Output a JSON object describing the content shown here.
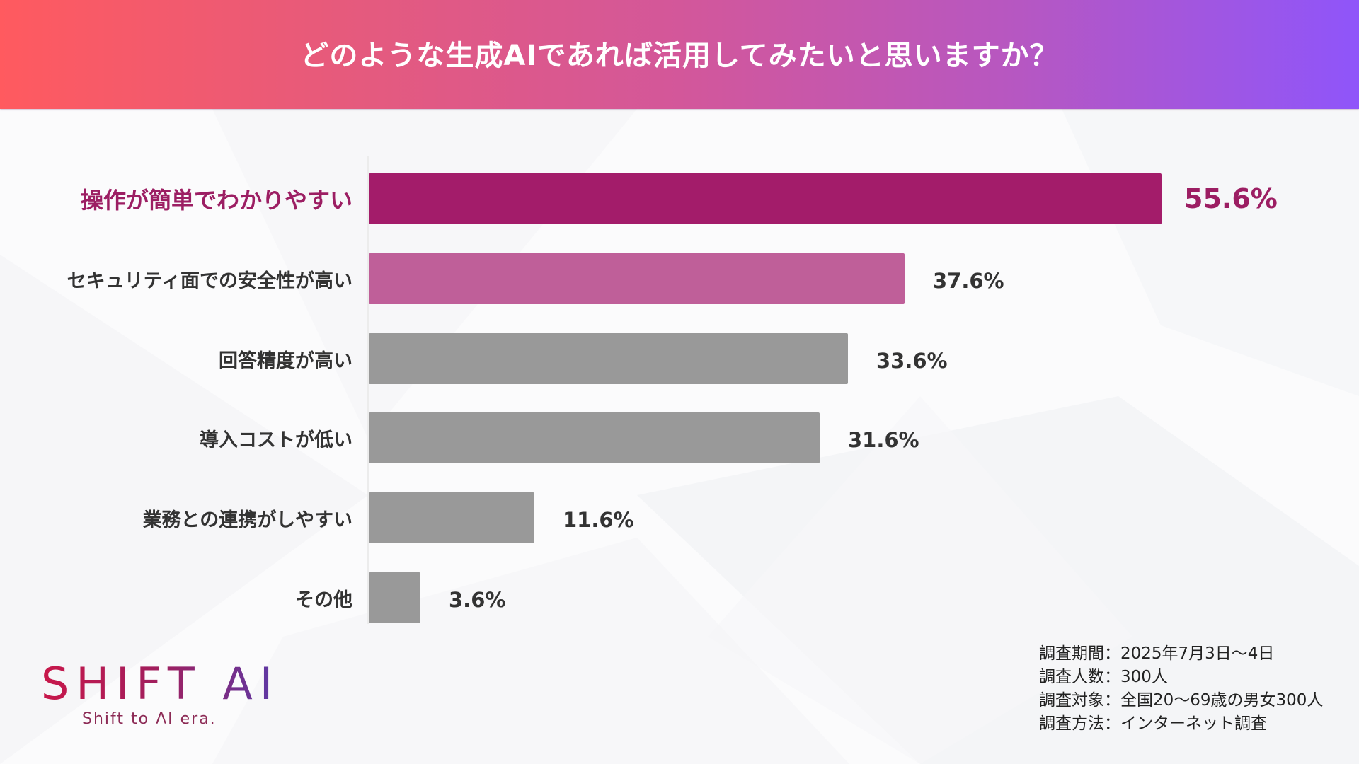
{
  "header": {
    "title": "どのような生成AIであれば活用してみたいと思いますか？"
  },
  "colors": {
    "highlight": "#a31c6a",
    "secondary": "#bf5f99",
    "neutral": "#999999",
    "highlight_text": "#9c1e63",
    "header_gradient": [
      "#ff5a5f",
      "#d3579a",
      "#8f55fa"
    ]
  },
  "chart_data": {
    "type": "bar",
    "orientation": "horizontal",
    "title": "どのような生成AIであれば活用してみたいと思いますか？",
    "xlabel": "",
    "ylabel": "",
    "xlim": [
      0,
      55.6
    ],
    "grid": false,
    "unit": "%",
    "categories": [
      "操作が簡単でわかりやすい",
      "セキュリティ面での安全性が高い",
      "回答精度が高い",
      "導入コストが低い",
      "業務との連携がしやすい",
      "その他"
    ],
    "values": [
      55.6,
      37.6,
      33.6,
      31.6,
      11.6,
      3.6
    ],
    "value_labels": [
      "55.6%",
      "37.6%",
      "33.6%",
      "31.6%",
      "11.6%",
      "3.6%"
    ],
    "bar_colors": [
      "#a31c6a",
      "#bf5f99",
      "#999999",
      "#999999",
      "#999999",
      "#999999"
    ],
    "highlighted_index": 0
  },
  "notes": [
    "調査期間：2025年7月3日〜4日",
    "調査人数：300人",
    "調査対象：全国20〜69歳の男女300人",
    "調査方法：インターネット調査"
  ],
  "logo": {
    "name": "SHIFT AI",
    "tagline": "Shift to ΛI era."
  }
}
